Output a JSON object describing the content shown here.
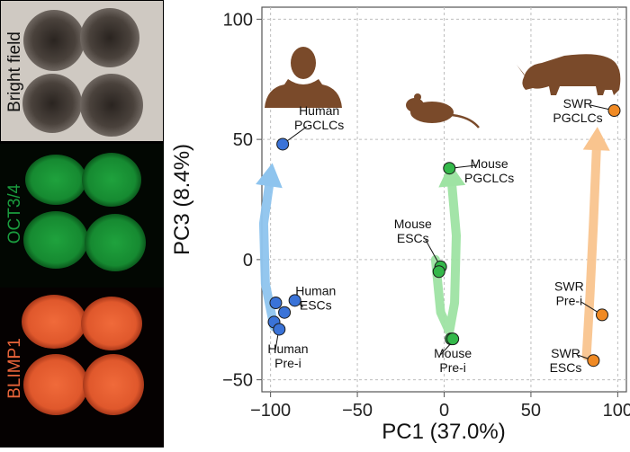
{
  "panels": [
    {
      "label": "Bright field",
      "color": "#111111"
    },
    {
      "label": "OCT3/4",
      "color": "#1a9c3e"
    },
    {
      "label": "BLIMP1",
      "color": "#e8643a"
    }
  ],
  "icons": [
    "human-silhouette-icon",
    "mouse-silhouette-icon",
    "rhino-silhouette-icon"
  ],
  "chart_data": {
    "type": "scatter",
    "xlabel": "PC1 (37.0%)",
    "ylabel": "PC3 (8.4%)",
    "xlim": [
      -105,
      105
    ],
    "ylim": [
      -55,
      105
    ],
    "xticks": [
      -100,
      -50,
      0,
      50,
      100
    ],
    "yticks": [
      -50,
      0,
      50,
      100
    ],
    "grid": true,
    "series": [
      {
        "color": "#3a73d8",
        "arrow_color": "#8ec4ee",
        "points": [
          {
            "x": -97,
            "y": -18
          },
          {
            "x": -98,
            "y": -26
          },
          {
            "x": -92,
            "y": -22
          },
          {
            "x": -95,
            "y": -29
          },
          {
            "x": -86,
            "y": -17
          },
          {
            "x": -93,
            "y": 48
          }
        ],
        "labels": [
          {
            "lines": [
              "Human",
              "PGCLCs"
            ],
            "x": -72,
            "y": 59,
            "anchor": "middle",
            "px": -93,
            "py": 48
          },
          {
            "lines": [
              "Human",
              "ESCs"
            ],
            "x": -74,
            "y": -16,
            "anchor": "middle",
            "px": -86,
            "py": -17
          },
          {
            "lines": [
              "Human",
              "Pre-i"
            ],
            "x": -90,
            "y": -40,
            "anchor": "middle",
            "px": -95,
            "py": -28
          }
        ]
      },
      {
        "color": "#34b84a",
        "arrow_color": "#9ee3a3",
        "points": [
          {
            "x": -2,
            "y": -3
          },
          {
            "x": -3,
            "y": -5
          },
          {
            "x": 4,
            "y": -33
          },
          {
            "x": 5,
            "y": -33
          },
          {
            "x": 3,
            "y": 38
          }
        ],
        "labels": [
          {
            "lines": [
              "Mouse",
              "PGCLCs"
            ],
            "x": 26,
            "y": 37,
            "anchor": "middle",
            "px": 4,
            "py": 38
          },
          {
            "lines": [
              "Mouse",
              "ESCs"
            ],
            "x": -18,
            "y": 12,
            "anchor": "middle",
            "px": -2,
            "py": -3
          },
          {
            "lines": [
              "Mouse",
              "Pre-i"
            ],
            "x": 5,
            "y": -42,
            "anchor": "middle",
            "px": 5,
            "py": -34
          }
        ]
      },
      {
        "color": "#f08a24",
        "arrow_color": "#f9c48e",
        "points": [
          {
            "x": 98,
            "y": 62
          },
          {
            "x": 91,
            "y": -23
          },
          {
            "x": 86,
            "y": -42
          }
        ],
        "labels": [
          {
            "lines": [
              "SWR",
              "PGCLCs"
            ],
            "x": 77,
            "y": 62,
            "anchor": "middle",
            "px": 98,
            "py": 62
          },
          {
            "lines": [
              "SWR",
              "Pre-i"
            ],
            "x": 72,
            "y": -14,
            "anchor": "middle",
            "px": 91,
            "py": -23
          },
          {
            "lines": [
              "SWR",
              "ESCs"
            ],
            "x": 70,
            "y": -42,
            "anchor": "middle",
            "px": 86,
            "py": -42
          }
        ]
      }
    ],
    "arrows": [
      {
        "color": "#8ec4ee",
        "path": [
          [
            -98,
            -28
          ],
          [
            -103,
            -10
          ],
          [
            -104,
            15
          ],
          [
            -100,
            35
          ]
        ]
      },
      {
        "color": "#9ee3a3",
        "path": [
          [
            -5,
            0
          ],
          [
            -2,
            -22
          ],
          [
            3,
            -30
          ],
          [
            6,
            -18
          ],
          [
            7,
            10
          ],
          [
            4,
            35
          ]
        ]
      },
      {
        "color": "#f9c48e",
        "path": [
          [
            82,
            -40
          ],
          [
            84,
            -15
          ],
          [
            86,
            15
          ],
          [
            88,
            50
          ]
        ]
      }
    ]
  }
}
